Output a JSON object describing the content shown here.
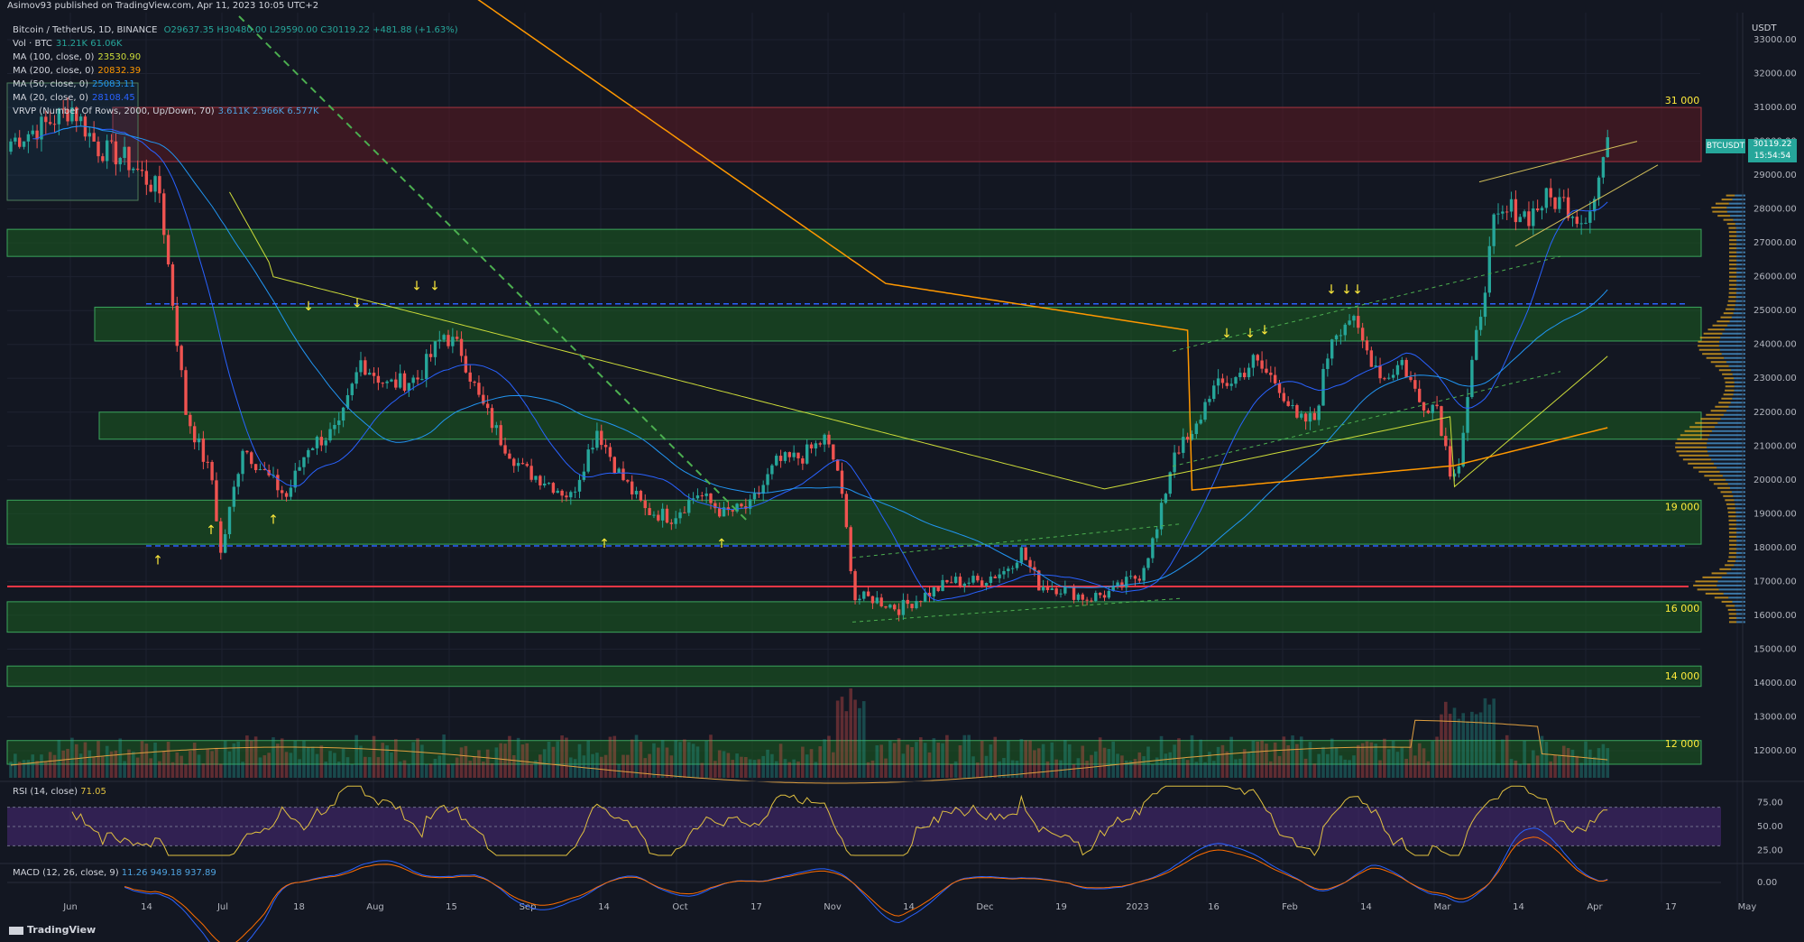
{
  "header": {
    "published": "Asimov93 published on TradingView.com, Apr 11, 2023 10:05 UTC+2"
  },
  "legend": {
    "symbol": "Bitcoin / TetherUS, 1D, BINANCE",
    "ohlc": "O29637.35 H30480.00 L29590.00 C30119.22 +481.88 (+1.63%)",
    "vol_label": "Vol · BTC",
    "vol_values": "31.21K 61.06K",
    "ma100_label": "MA (100, close, 0)",
    "ma100_value": "23530.90",
    "ma200_label": "MA (200, close, 0)",
    "ma200_value": "20832.39",
    "ma50_label": "MA (50, close, 0)",
    "ma50_value": "25083.11",
    "ma20_label": "MA (20, close, 0)",
    "ma20_value": "28108.45",
    "vrvp_label": "VRVP (Number Of Rows, 2000, Up/Down, 70)",
    "vrvp_values": "3.611K 2.966K 6.577K"
  },
  "rsi_label": "RSI (14, close)",
  "rsi_value": "71.05",
  "macd_label": "MACD (12, 26, close, 9)",
  "macd_values": "11.26 949.18 937.89",
  "footer": "TradingView",
  "price_tag": {
    "symbol": "BTCUSDT",
    "price": "30119.22",
    "countdown": "15:54:54"
  },
  "currency": "USDT",
  "colors": {
    "background": "#131722",
    "bull": "#26a69a",
    "bear": "#ef5350",
    "zone_green": "#1b5e20",
    "zone_red": "#5d1a22",
    "ma20": "#2962ff",
    "ma50": "#2196f3",
    "ma100": "#cddc39",
    "ma200": "#ff9800",
    "trend_green": "#4caf50",
    "support_red": "#f23645",
    "rsi": "#e0c040"
  },
  "chart_data": {
    "type": "candlestick",
    "x_ticks": [
      "Jun",
      "14",
      "Jul",
      "18",
      "Aug",
      "15",
      "Sep",
      "14",
      "Oct",
      "17",
      "Nov",
      "14",
      "Dec",
      "19",
      "2023",
      "16",
      "Feb",
      "14",
      "Mar",
      "14",
      "Apr",
      "17",
      "May"
    ],
    "y_ticks": [
      12000,
      13000,
      14000,
      15000,
      16000,
      17000,
      18000,
      19000,
      20000,
      21000,
      22000,
      23000,
      24000,
      25000,
      26000,
      27000,
      28000,
      29000,
      30000,
      31000,
      32000,
      33000
    ],
    "y_labels": [
      "12000.00",
      "13000.00",
      "14000.00",
      "15000.00",
      "16000.00",
      "17000.00",
      "18000.00",
      "19000.00",
      "20000.00",
      "21000.00",
      "22000.00",
      "23000.00",
      "24000.00",
      "25000.00",
      "26000.00",
      "27000.00",
      "28000.00",
      "29000.00",
      "30000.00",
      "31000.00",
      "32000.00",
      "33000.00"
    ],
    "ylim": [
      11200,
      33800
    ],
    "price_anchors": [
      [
        0,
        30000
      ],
      [
        8,
        30500
      ],
      [
        14,
        31000
      ],
      [
        20,
        29800
      ],
      [
        26,
        29500
      ],
      [
        34,
        28500
      ],
      [
        40,
        22000
      ],
      [
        46,
        20000
      ],
      [
        48,
        17800
      ],
      [
        53,
        21000
      ],
      [
        58,
        20200
      ],
      [
        63,
        19500
      ],
      [
        68,
        21000
      ],
      [
        75,
        21500
      ],
      [
        80,
        23500
      ],
      [
        86,
        22800
      ],
      [
        93,
        23000
      ],
      [
        99,
        24300
      ],
      [
        103,
        23800
      ],
      [
        107,
        22400
      ],
      [
        112,
        21200
      ],
      [
        117,
        20300
      ],
      [
        122,
        20000
      ],
      [
        128,
        19500
      ],
      [
        134,
        21500
      ],
      [
        139,
        20200
      ],
      [
        145,
        19100
      ],
      [
        151,
        18900
      ],
      [
        157,
        19600
      ],
      [
        163,
        19000
      ],
      [
        169,
        19200
      ],
      [
        175,
        20500
      ],
      [
        181,
        20700
      ],
      [
        186,
        21200
      ],
      [
        189,
        20300
      ],
      [
        191,
        18500
      ],
      [
        193,
        16500
      ],
      [
        197,
        16500
      ],
      [
        203,
        16200
      ],
      [
        209,
        16600
      ],
      [
        215,
        17000
      ],
      [
        221,
        17000
      ],
      [
        227,
        17300
      ],
      [
        231,
        17900
      ],
      [
        235,
        16900
      ],
      [
        240,
        16800
      ],
      [
        246,
        16500
      ],
      [
        252,
        16700
      ],
      [
        258,
        17200
      ],
      [
        262,
        18500
      ],
      [
        266,
        20900
      ],
      [
        270,
        21200
      ],
      [
        274,
        22600
      ],
      [
        280,
        23000
      ],
      [
        284,
        23500
      ],
      [
        290,
        22800
      ],
      [
        294,
        21700
      ],
      [
        298,
        21800
      ],
      [
        302,
        24300
      ],
      [
        306,
        24800
      ],
      [
        310,
        23800
      ],
      [
        314,
        23000
      ],
      [
        318,
        23500
      ],
      [
        322,
        22300
      ],
      [
        326,
        22200
      ],
      [
        329,
        20300
      ],
      [
        331,
        20500
      ],
      [
        335,
        24200
      ],
      [
        339,
        27500
      ],
      [
        343,
        28000
      ],
      [
        347,
        27800
      ],
      [
        351,
        28300
      ],
      [
        355,
        28200
      ],
      [
        359,
        27700
      ],
      [
        362,
        28300
      ],
      [
        365,
        30119
      ]
    ],
    "zones": [
      {
        "color": "red",
        "from": 29400,
        "to": 31000
      },
      {
        "color": "green",
        "from": 26600,
        "to": 27400
      },
      {
        "color": "green",
        "from": 24100,
        "to": 25100
      },
      {
        "color": "green",
        "from": 21200,
        "to": 22000
      },
      {
        "color": "green",
        "from": 18100,
        "to": 19400
      },
      {
        "color": "green",
        "from": 15500,
        "to": 16400
      },
      {
        "color": "green",
        "from": 13900,
        "to": 14500
      },
      {
        "color": "green",
        "from": 11600,
        "to": 12300
      }
    ],
    "zone_labels": [
      {
        "text": "31 000",
        "price": 31000
      },
      {
        "text": "19 000",
        "price": 19000
      },
      {
        "text": "16 000",
        "price": 16000
      },
      {
        "text": "14 000",
        "price": 14000
      },
      {
        "text": "12 000",
        "price": 12000
      }
    ],
    "horizontal_lines": [
      {
        "price": 25200,
        "color": "blue",
        "style": "dashed"
      },
      {
        "price": 18050,
        "color": "blue",
        "style": "dashed"
      },
      {
        "price": 16850,
        "color": "red",
        "style": "solid"
      }
    ],
    "rsi_ticks": [
      75,
      50,
      25
    ],
    "rsi_labels": [
      "75.00",
      "50.00",
      "25.00"
    ],
    "macd_labels": [
      "0.00"
    ]
  }
}
